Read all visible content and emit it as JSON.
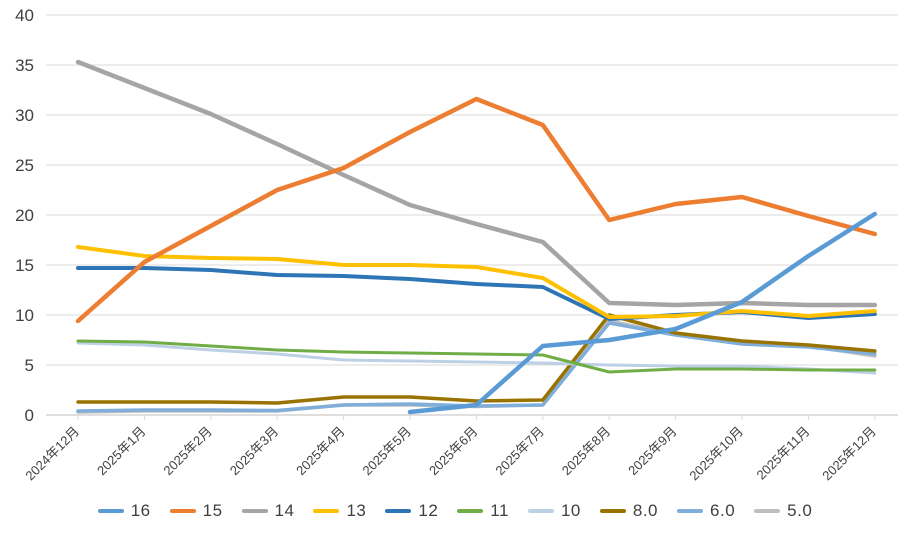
{
  "chart_data": {
    "type": "line",
    "title": "",
    "xlabel": "",
    "ylabel": "",
    "ylim": [
      0,
      40
    ],
    "ytick_interval": 5,
    "ytick_labels": [
      "0",
      "5",
      "10",
      "15",
      "20",
      "25",
      "30",
      "35",
      "40"
    ],
    "grid": "horizontal",
    "legend_position": "bottom",
    "categories": [
      "2024年12月",
      "2025年1月",
      "2025年2月",
      "2025年3月",
      "2025年4月",
      "2025年5月",
      "2025年6月",
      "2025年7月",
      "2025年8月",
      "2025年9月",
      "2025年10月",
      "2025年11月",
      "2025年12月"
    ],
    "series": [
      {
        "name": "16",
        "color": "#5B9BD5",
        "width": 4.5,
        "values": [
          null,
          null,
          null,
          null,
          null,
          0.3,
          1.0,
          6.9,
          7.5,
          8.6,
          11.3,
          15.9,
          20.1
        ]
      },
      {
        "name": "15",
        "color": "#ED7D31",
        "width": 4.5,
        "values": [
          9.4,
          15.3,
          18.9,
          22.5,
          24.7,
          28.3,
          31.6,
          29.0,
          19.5,
          21.1,
          21.8,
          19.9,
          18.1
        ]
      },
      {
        "name": "14",
        "color": "#A5A5A5",
        "width": 4.5,
        "values": [
          35.3,
          32.7,
          30.1,
          27.1,
          24.0,
          21.0,
          19.1,
          17.3,
          11.2,
          11.0,
          11.2,
          11.0,
          11.0
        ]
      },
      {
        "name": "13",
        "color": "#FFC000",
        "width": 4,
        "values": [
          16.8,
          15.9,
          15.7,
          15.6,
          15.0,
          15.0,
          14.8,
          13.7,
          9.8,
          9.9,
          10.4,
          9.9,
          10.4
        ]
      },
      {
        "name": "12",
        "color": "#2E75B6",
        "width": 4,
        "values": [
          14.7,
          14.7,
          14.5,
          14.0,
          13.9,
          13.6,
          13.1,
          12.8,
          9.6,
          10.0,
          10.3,
          9.7,
          10.1
        ]
      },
      {
        "name": "11",
        "color": "#70AD47",
        "width": 3,
        "values": [
          7.4,
          7.3,
          6.9,
          6.5,
          6.3,
          6.2,
          6.1,
          6.0,
          4.3,
          4.6,
          4.6,
          4.5,
          4.5
        ]
      },
      {
        "name": "10",
        "color": "#BDD0E6",
        "width": 3,
        "values": [
          7.2,
          7.0,
          6.5,
          6.1,
          5.5,
          5.4,
          5.3,
          5.2,
          5.0,
          4.9,
          4.9,
          4.6,
          4.2
        ]
      },
      {
        "name": "8.0",
        "color": "#997300",
        "width": 3.5,
        "values": [
          1.3,
          1.3,
          1.3,
          1.2,
          1.8,
          1.8,
          1.4,
          1.5,
          10.0,
          8.2,
          7.4,
          7.0,
          6.4
        ]
      },
      {
        "name": "6.0",
        "color": "#7EAED9",
        "width": 3.5,
        "values": [
          0.4,
          0.5,
          0.5,
          0.45,
          1.0,
          1.1,
          0.9,
          1.0,
          9.2,
          8.0,
          7.1,
          6.8,
          6.1
        ]
      },
      {
        "name": "5.0",
        "color": "#BFBFBF",
        "width": 3.5,
        "values": [
          0.3,
          0.4,
          0.4,
          0.4,
          1.0,
          1.0,
          0.85,
          1.0,
          9.4,
          8.1,
          7.2,
          6.9,
          5.9
        ]
      }
    ]
  },
  "style": {
    "grid_color": "#D9D9D9",
    "axis_line_color": "#BFBFBF",
    "y_label_color": "#404040",
    "x_label_color": "#404040",
    "legend_label_color": "#404040",
    "background": "#FFFFFF"
  }
}
